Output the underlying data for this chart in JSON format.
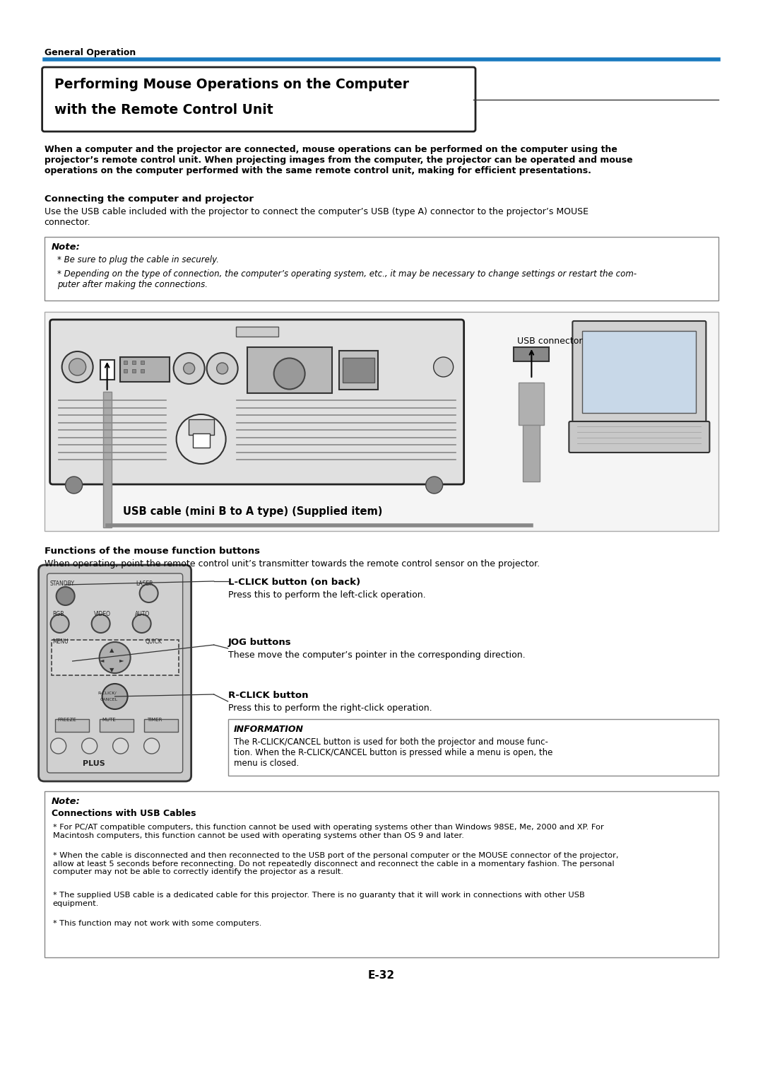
{
  "page_bg": "#ffffff",
  "header_label": "General Operation",
  "header_line_color": "#1a7abf",
  "title_line1": "Performing Mouse Operations on the Computer",
  "title_line2": "with the Remote Control Unit",
  "intro_text": "When a computer and the projector are connected, mouse operations can be performed on the computer using the\nprojector’s remote control unit. When projecting images from the computer, the projector can be operated and mouse\noperations on the computer performed with the same remote control unit, making for efficient presentations.",
  "s1_head": "Connecting the computer and projector",
  "s1_text": "Use the USB cable included with the projector to connect the computer’s USB (type A) connector to the projector’s MOUSE\nconnector.",
  "note1_label": "Note:",
  "note1_b1": "Be sure to plug the cable in securely.",
  "note1_b2": "Depending on the type of connection, the computer’s operating system, etc., it may be necessary to change settings or restart the com-\nputer after making the connections.",
  "usb_cable_label": "USB cable (mini B to A type) (Supplied item)",
  "usb_connector_label": "USB connector",
  "s2_head": "Functions of the mouse function buttons",
  "s2_sub": "When operating, point the remote control unit’s transmitter towards the remote control sensor on the projector.",
  "lclick_head": "L-CLICK button (on back)",
  "lclick_text": "Press this to perform the left-click operation.",
  "jog_head": "JOG buttons",
  "jog_text": "These move the computer’s pointer in the corresponding direction.",
  "rclick_head": "R-CLICK button",
  "rclick_text": "Press this to perform the right-click operation.",
  "info_head": "INFORMATION",
  "info_text": "The R-CLICK/CANCEL button is used for both the projector and mouse func-\ntion. When the R-CLICK/CANCEL button is pressed while a menu is open, the\nmenu is closed.",
  "note2_label": "Note:",
  "note2_bold": "Connections with USB Cables",
  "note2_b1": "For PC/AT compatible computers, this function cannot be used with operating systems other than Windows 98SE, Me, 2000 and XP. For\nMacintosh computers, this function cannot be used with operating systems other than OS 9 and later.",
  "note2_b2": "When the cable is disconnected and then reconnected to the USB port of the personal computer or the MOUSE connector of the projector,\nallow at least 5 seconds before reconnecting. Do not repeatedly disconnect and reconnect the cable in a momentary fashion. The personal\ncomputer may not be able to correctly identify the projector as a result.",
  "note2_b3": "The supplied USB cable is a dedicated cable for this projector. There is no guaranty that it will work in connections with other USB\nequipment.",
  "note2_b4": "This function may not work with some computers.",
  "page_num": "E-32",
  "ml": 0.058,
  "mr": 0.942
}
